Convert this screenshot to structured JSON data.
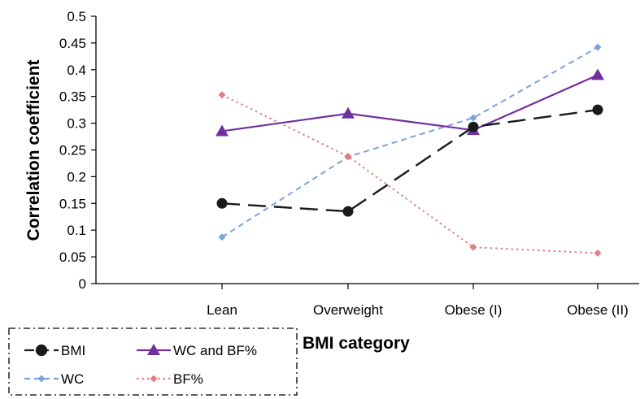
{
  "chart_data": {
    "type": "line",
    "categories": [
      "Lean",
      "Overweight",
      "Obese (I)",
      "Obese (II)"
    ],
    "xlabel": "BMI category",
    "ylabel": "Correlation coefficient",
    "ylim": [
      0,
      0.5
    ],
    "yticks": [
      "0",
      "0.05",
      "0.1",
      "0.15",
      "0.2",
      "0.25",
      "0.3",
      "0.35",
      "0.4",
      "0.45",
      "0.5"
    ],
    "grid": false,
    "legend_position": "bottom-left",
    "series": [
      {
        "name": "BMI",
        "values": [
          0.15,
          0.135,
          0.293,
          0.325
        ],
        "color": "#1a1a1a",
        "marker": "circle",
        "dash": "long-dash"
      },
      {
        "name": "WC and BF%",
        "values": [
          0.285,
          0.318,
          0.287,
          0.39
        ],
        "color": "#7030a0",
        "marker": "triangle",
        "dash": "solid"
      },
      {
        "name": "WC",
        "values": [
          0.087,
          0.237,
          0.31,
          0.442
        ],
        "color": "#7ba3d6",
        "marker": "diamond",
        "dash": "short-dash"
      },
      {
        "name": "BF%",
        "values": [
          0.353,
          0.238,
          0.068,
          0.057
        ],
        "color": "#e08080",
        "marker": "diamond",
        "dash": "dotted"
      }
    ]
  }
}
